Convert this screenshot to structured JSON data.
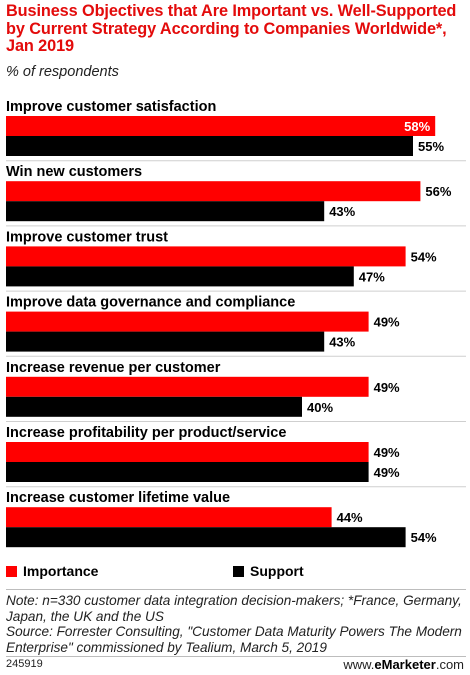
{
  "header": {
    "title": "Business Objectives that Are Important vs. Well-Supported by Current Strategy According to Companies Worldwide*, Jan 2019",
    "subtitle": "% of respondents"
  },
  "chart_data": {
    "type": "bar",
    "orientation": "horizontal",
    "categories": [
      "Improve customer satisfaction",
      "Win new customers",
      "Improve customer trust",
      "Improve data governance and compliance",
      "Increase revenue per customer",
      "Increase profitability per product/service",
      "Increase customer lifetime value"
    ],
    "series": [
      {
        "name": "Importance",
        "values": [
          58,
          56,
          54,
          49,
          49,
          49,
          44
        ],
        "labels": [
          "58%",
          "56%",
          "54%",
          "49%",
          "49%",
          "49%",
          "44%"
        ],
        "color": "#ff0000"
      },
      {
        "name": "Support",
        "values": [
          55,
          43,
          47,
          43,
          40,
          49,
          54
        ],
        "labels": [
          "55%",
          "43%",
          "47%",
          "43%",
          "40%",
          "49%",
          "54%"
        ],
        "color": "#000000"
      }
    ],
    "value_unit": "%",
    "legend_position": "bottom-left",
    "grid": false
  },
  "legend": [
    {
      "label": "Importance",
      "color": "#ff0000"
    },
    {
      "label": "Support",
      "color": "#000000"
    }
  ],
  "footer": {
    "notes": "Note: n=330 customer data integration decision-makers; *France, Germany, Japan, the UK and the US",
    "source": "Source: Forrester Consulting, \"Customer Data Maturity Powers The Modern Enterprise\" commissioned by Tealium, March 5, 2019",
    "chart_id": "245919",
    "brand_prefix": "www.",
    "brand_name": "eMarketer",
    "brand_suffix": ".com"
  },
  "colors": {
    "title": "#e30b0b",
    "importance": "#ff0000",
    "support": "#000000"
  }
}
